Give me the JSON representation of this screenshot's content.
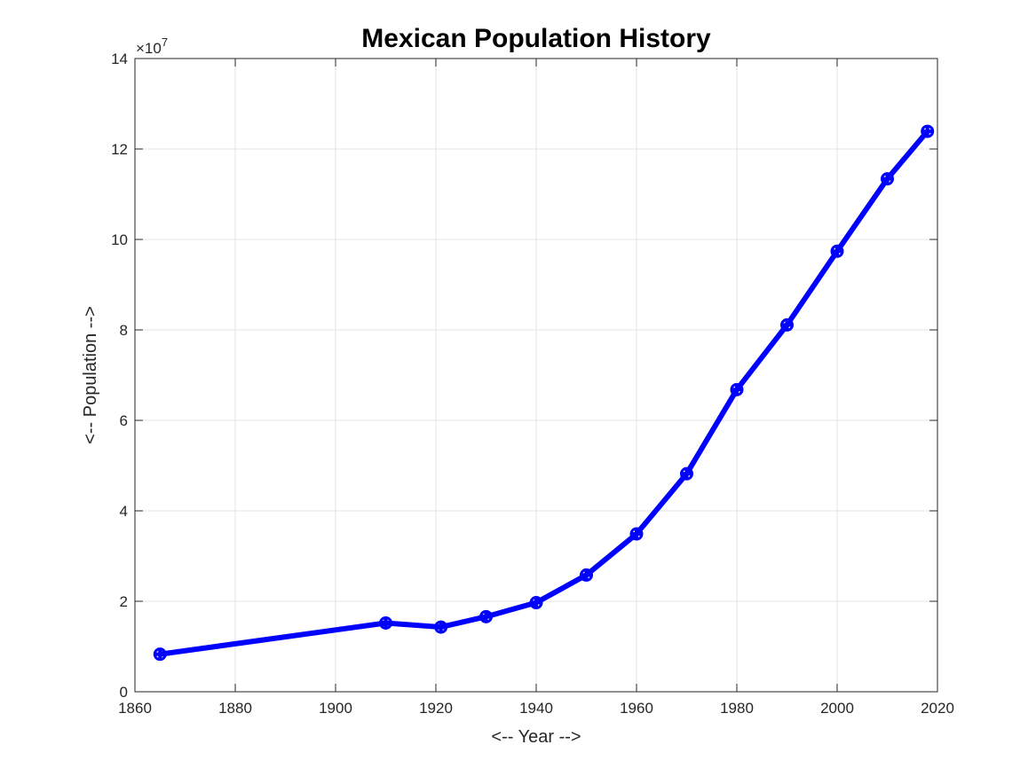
{
  "chart_data": {
    "type": "line",
    "title": "Mexican Population History",
    "xlabel": "<-- Year -->",
    "ylabel": "<-- Population -->",
    "y_exponent_base": "×10",
    "y_exponent_power": "7",
    "xlim": [
      1860,
      2020
    ],
    "ylim": [
      0,
      14
    ],
    "x_ticks": [
      1860,
      1880,
      1900,
      1920,
      1940,
      1960,
      1980,
      2000,
      2020
    ],
    "y_ticks": [
      0,
      2,
      4,
      6,
      8,
      10,
      12,
      14
    ],
    "grid": true,
    "line_color": "#0000ff",
    "marker": "plus-circle",
    "series": [
      {
        "x": [
          1865,
          1910,
          1921,
          1930,
          1940,
          1950,
          1960,
          1970,
          1980,
          1990,
          2000,
          2010,
          2018
        ],
        "y": [
          0.83,
          1.52,
          1.43,
          1.66,
          1.97,
          2.58,
          3.49,
          4.82,
          6.68,
          8.11,
          9.74,
          11.34,
          12.39
        ]
      }
    ]
  }
}
